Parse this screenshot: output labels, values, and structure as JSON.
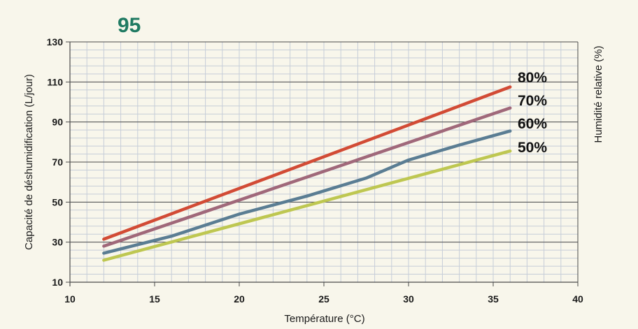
{
  "chart_data": {
    "type": "line",
    "title": "95",
    "xlabel": "Température (°C)",
    "ylabel": "Capacité de déshumidification (L/jour)",
    "y2label": "Humidité relative (%)",
    "xlim": [
      10,
      40
    ],
    "ylim": [
      10,
      130
    ],
    "xticks": [
      10,
      15,
      20,
      25,
      30,
      35,
      40
    ],
    "yticks": [
      10,
      30,
      50,
      70,
      90,
      110,
      130
    ],
    "grid": true,
    "series": [
      {
        "name": "80%",
        "color": "#d24b35",
        "x": [
          12,
          36
        ],
        "y": [
          31.5,
          107.5
        ]
      },
      {
        "name": "70%",
        "color": "#a0687a",
        "x": [
          12,
          36
        ],
        "y": [
          28,
          97
        ]
      },
      {
        "name": "60%",
        "color": "#5a7d93",
        "x": [
          12,
          16,
          20,
          24,
          27.5,
          30,
          33,
          36
        ],
        "y": [
          24.5,
          33,
          44,
          53,
          62,
          71,
          78.5,
          85.5
        ]
      },
      {
        "name": "50%",
        "color": "#bec751",
        "x": [
          12,
          36
        ],
        "y": [
          21,
          75.5
        ]
      }
    ]
  },
  "colors": {
    "background": "#f8f6eb",
    "title": "#1f7a62",
    "grid_minor": "#c6cdd8",
    "grid_major": "#4a4a4a"
  }
}
